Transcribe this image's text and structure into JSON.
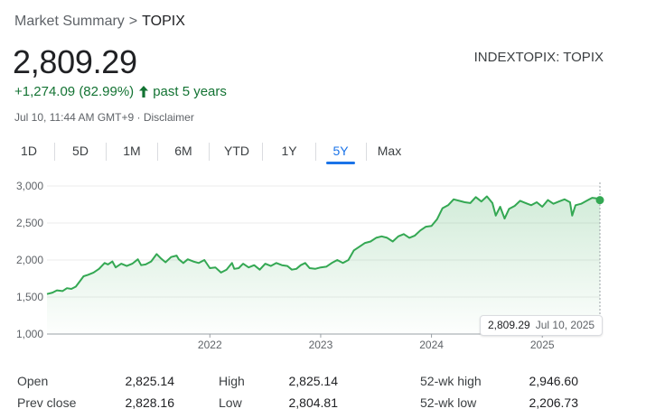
{
  "breadcrumb": {
    "parent": "Market Summary",
    "separator": ">",
    "current": "TOPIX"
  },
  "quote": {
    "price": "2,809.29",
    "ticker": "INDEXTOPIX: TOPIX",
    "change": "+1,274.09 (82.99%)",
    "period": "past 5 years",
    "timestamp": "Jul 10, 11:44 AM GMT+9 · Disclaimer",
    "direction_icon": "arrow-up-icon"
  },
  "tabs": [
    {
      "label": "1D",
      "active": false
    },
    {
      "label": "5D",
      "active": false
    },
    {
      "label": "1M",
      "active": false
    },
    {
      "label": "6M",
      "active": false
    },
    {
      "label": "YTD",
      "active": false
    },
    {
      "label": "1Y",
      "active": false
    },
    {
      "label": "5Y",
      "active": true
    },
    {
      "label": "Max",
      "active": false
    }
  ],
  "tooltip": {
    "value": "2,809.29",
    "date": "Jul 10, 2025"
  },
  "stats": {
    "rows": [
      [
        {
          "label": "Open",
          "value": "2,825.14"
        },
        {
          "label": "High",
          "value": "2,825.14"
        },
        {
          "label": "52-wk high",
          "value": "2,946.60"
        }
      ],
      [
        {
          "label": "Prev close",
          "value": "2,828.16"
        },
        {
          "label": "Low",
          "value": "2,804.81"
        },
        {
          "label": "52-wk low",
          "value": "2,206.73"
        }
      ]
    ]
  },
  "colors": {
    "line": "#34a853",
    "positive_text": "#137333",
    "accent": "#1a73e8"
  },
  "chart_data": {
    "type": "line",
    "x_tick_labels": [
      "2022",
      "2023",
      "2024",
      "2025"
    ],
    "y_tick_labels": [
      "3,000",
      "2,500",
      "2,000",
      "1,500",
      "1,000"
    ],
    "ylim": [
      1000,
      3000
    ],
    "xlim": [
      2020.53,
      2025.52
    ],
    "grid": true,
    "series": [
      {
        "x": [
          2020.53,
          2020.58,
          2020.62,
          2020.67,
          2020.71,
          2020.75,
          2020.79,
          2020.83,
          2020.86,
          2020.9,
          2020.95,
          2021.0,
          2021.05,
          2021.08,
          2021.12,
          2021.15,
          2021.2,
          2021.25,
          2021.3,
          2021.35,
          2021.38,
          2021.42,
          2021.47,
          2021.52,
          2021.56,
          2021.6,
          2021.65,
          2021.7,
          2021.72,
          2021.76,
          2021.8,
          2021.85,
          2021.9,
          2021.95,
          2022.0,
          2022.05,
          2022.1,
          2022.15,
          2022.2,
          2022.22,
          2022.26,
          2022.3,
          2022.35,
          2022.4,
          2022.45,
          2022.5,
          2022.55,
          2022.6,
          2022.65,
          2022.7,
          2022.74,
          2022.78,
          2022.82,
          2022.86,
          2022.9,
          2022.95,
          2023.0,
          2023.05,
          2023.1,
          2023.15,
          2023.2,
          2023.25,
          2023.3,
          2023.35,
          2023.4,
          2023.45,
          2023.5,
          2023.55,
          2023.6,
          2023.65,
          2023.7,
          2023.75,
          2023.8,
          2023.85,
          2023.9,
          2023.95,
          2024.0,
          2024.05,
          2024.1,
          2024.15,
          2024.2,
          2024.25,
          2024.3,
          2024.35,
          2024.4,
          2024.45,
          2024.5,
          2024.55,
          2024.58,
          2024.62,
          2024.66,
          2024.7,
          2024.75,
          2024.8,
          2024.85,
          2024.9,
          2024.95,
          2025.0,
          2025.05,
          2025.1,
          2025.15,
          2025.2,
          2025.25,
          2025.27,
          2025.3,
          2025.35,
          2025.4,
          2025.45,
          2025.5,
          2025.52
        ],
        "y": [
          1540,
          1560,
          1590,
          1580,
          1620,
          1610,
          1640,
          1720,
          1780,
          1800,
          1830,
          1880,
          1960,
          1940,
          1980,
          1900,
          1950,
          1920,
          1950,
          2010,
          1930,
          1940,
          1980,
          2080,
          2020,
          1970,
          2040,
          2060,
          2010,
          1960,
          2010,
          1980,
          1960,
          2000,
          1890,
          1900,
          1830,
          1870,
          1960,
          1880,
          1890,
          1950,
          1900,
          1930,
          1870,
          1950,
          1920,
          1960,
          1930,
          1920,
          1870,
          1880,
          1930,
          1960,
          1890,
          1880,
          1900,
          1910,
          1960,
          2000,
          1960,
          2000,
          2130,
          2180,
          2230,
          2250,
          2300,
          2320,
          2300,
          2250,
          2320,
          2350,
          2300,
          2330,
          2400,
          2450,
          2460,
          2550,
          2700,
          2740,
          2820,
          2800,
          2780,
          2770,
          2850,
          2790,
          2860,
          2770,
          2600,
          2720,
          2560,
          2690,
          2730,
          2800,
          2770,
          2740,
          2780,
          2720,
          2810,
          2760,
          2790,
          2820,
          2780,
          2600,
          2740,
          2760,
          2800,
          2840,
          2830,
          2809.29
        ]
      }
    ]
  }
}
